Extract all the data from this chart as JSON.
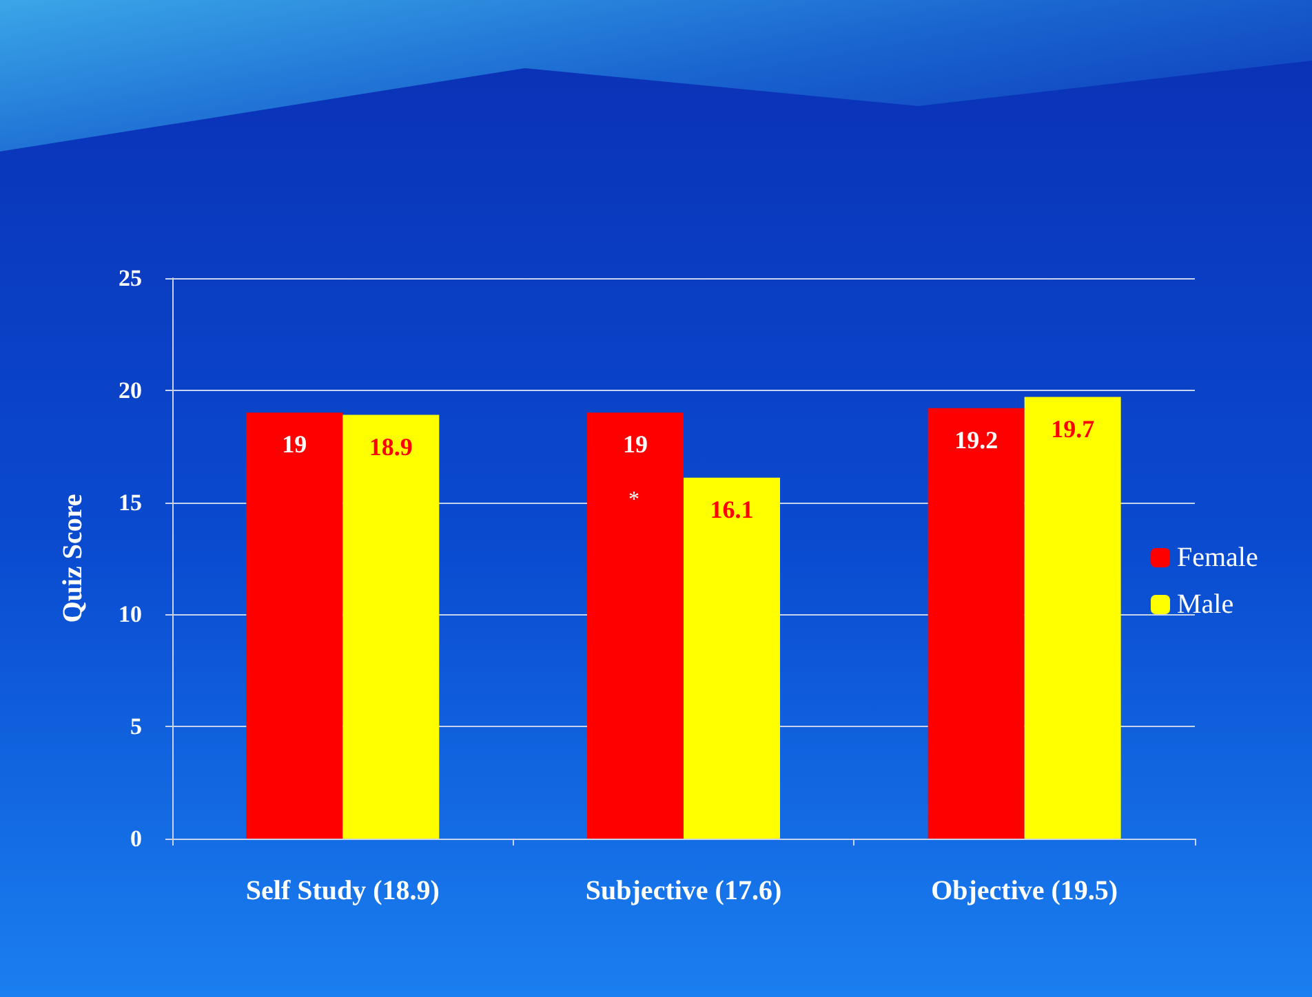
{
  "chart_data": {
    "type": "bar",
    "ylabel": "Quiz Score",
    "categories": [
      "Self Study (18.9)",
      "Subjective (17.6)",
      "Objective (19.5)"
    ],
    "series": [
      {
        "name": "Female",
        "color": "#ff0000",
        "values": [
          19,
          19,
          19.2
        ]
      },
      {
        "name": "Male",
        "color": "#ffff00",
        "values": [
          18.9,
          16.1,
          19.7
        ]
      }
    ],
    "ylim": [
      0,
      25
    ],
    "yticks": [
      0,
      5,
      10,
      15,
      20,
      25
    ],
    "grid": "y",
    "legend": "right",
    "data_labels": true,
    "annotations": [
      "*"
    ]
  }
}
